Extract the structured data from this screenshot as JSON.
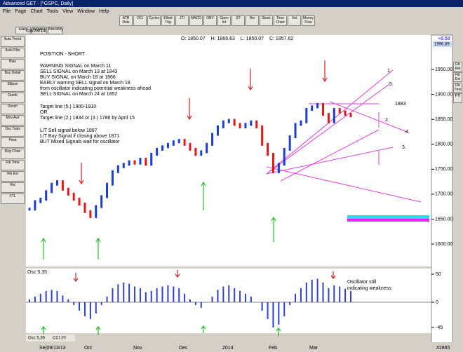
{
  "window": {
    "title": "Advanced GET - [^GSPC, Daily]",
    "menu": [
      "File",
      "Page",
      "Chart",
      "Tools",
      "View",
      "Window",
      "Help"
    ]
  },
  "toolbar": [
    "ATR Dsts",
    "OCI",
    "Cycles",
    "Elliott Trig",
    "JTI",
    "MACD",
    "OBV",
    "Open Int",
    "ST",
    "Rsi",
    "Stock",
    "Time Chart",
    "Vol",
    "Money Flow"
  ],
  "left_tools": [
    "Auto Trend",
    "Auto Fibs",
    "Bias",
    "Buy Detail",
    "Ellipse",
    "Dumb",
    "Dovch",
    "Mov Ave",
    "Osc Tools",
    "Pivot",
    "Reg Chan",
    "Fib Time",
    "Fib Ext",
    "Rsi",
    "XTL"
  ],
  "right_tools": [
    "Fib Ret",
    "Fib Ext",
    "Fib Tme",
    "PTI"
  ],
  "tabs": [
    "Daily",
    "Weekly",
    "Monthly"
  ],
  "header": {
    "date": "03/28/14",
    "open": "O: 1850.07",
    "high": "H: 1866.63",
    "low": "L: 1850.07",
    "close": "C: 1857.62",
    "change": "+8.58"
  },
  "notes": [
    "POSITION - SHORT",
    "WARNING SIGNAL on March 11",
    "SELL SIGNAL on March 13 at 1843",
    "BUY SIGNAL on March 18 at 1866",
    "EARLY warning SELL signal on March 18",
    "from oscillator indicating potential weakness ahead",
    "SELL SIGNAL on March 24 at 1852",
    "Target line (5.) 1900-1910",
    "OR",
    "Target line (2.) 1834 or (3.) 1786 by April 15",
    "L/T Sell signal below 1867",
    "L/T Buy Signal if closing above 1871",
    "BUT Mixed Signals wait for oscillator"
  ],
  "line_labels": [
    "1.",
    "5.",
    "1883",
    "2.",
    "4.",
    "3."
  ],
  "osc_note": [
    "Oscillator still",
    "indicating weakness"
  ],
  "price": {
    "ylim": [
      1555,
      2005
    ],
    "last_label": "1996.89",
    "yticks": [
      {
        "value": 1950,
        "label": "1950.00"
      },
      {
        "value": 1900,
        "label": "1900.00"
      },
      {
        "value": 1850,
        "label": "1850.00"
      },
      {
        "value": 1800,
        "label": "1800.00"
      },
      {
        "value": 1750,
        "label": "1750.00"
      },
      {
        "value": 1700,
        "label": "1700.00"
      },
      {
        "value": 1650,
        "label": "1650.00"
      },
      {
        "value": 1600,
        "label": "1600.00"
      }
    ],
    "closes": [
      1670,
      1685,
      1690,
      1705,
      1720,
      1725,
      1710,
      1700,
      1690,
      1680,
      1665,
      1655,
      1675,
      1695,
      1720,
      1745,
      1755,
      1760,
      1765,
      1762,
      1770,
      1760,
      1780,
      1790,
      1795,
      1800,
      1805,
      1808,
      1800,
      1790,
      1780,
      1785,
      1800,
      1820,
      1835,
      1845,
      1848,
      1840,
      1835,
      1840,
      1845,
      1835,
      1800,
      1780,
      1745,
      1760,
      1790,
      1815,
      1840,
      1845,
      1870,
      1875,
      1880,
      1860,
      1845,
      1870,
      1865,
      1860,
      1857
    ]
  },
  "oscillator": {
    "label": "Osc 5,35",
    "ylim": [
      -55,
      60
    ],
    "yticks": [
      50,
      0,
      -45
    ],
    "values": [
      5,
      10,
      15,
      20,
      22,
      20,
      12,
      5,
      -5,
      -15,
      -25,
      -30,
      -20,
      -5,
      10,
      25,
      32,
      35,
      33,
      28,
      25,
      18,
      20,
      25,
      28,
      30,
      28,
      25,
      15,
      5,
      -5,
      -10,
      0,
      10,
      22,
      28,
      30,
      25,
      20,
      15,
      10,
      0,
      -15,
      -30,
      -45,
      -40,
      -25,
      -5,
      15,
      25,
      35,
      40,
      42,
      35,
      25,
      30,
      28,
      24,
      20
    ]
  },
  "bottom_tabs": [
    "Osc 5,35",
    "CCI 20"
  ],
  "dates": [
    "Se|09/13/13",
    "Oct",
    "Nov",
    "Dec",
    "2014",
    "Feb",
    "Mar"
  ],
  "bar_count": "#2865"
}
